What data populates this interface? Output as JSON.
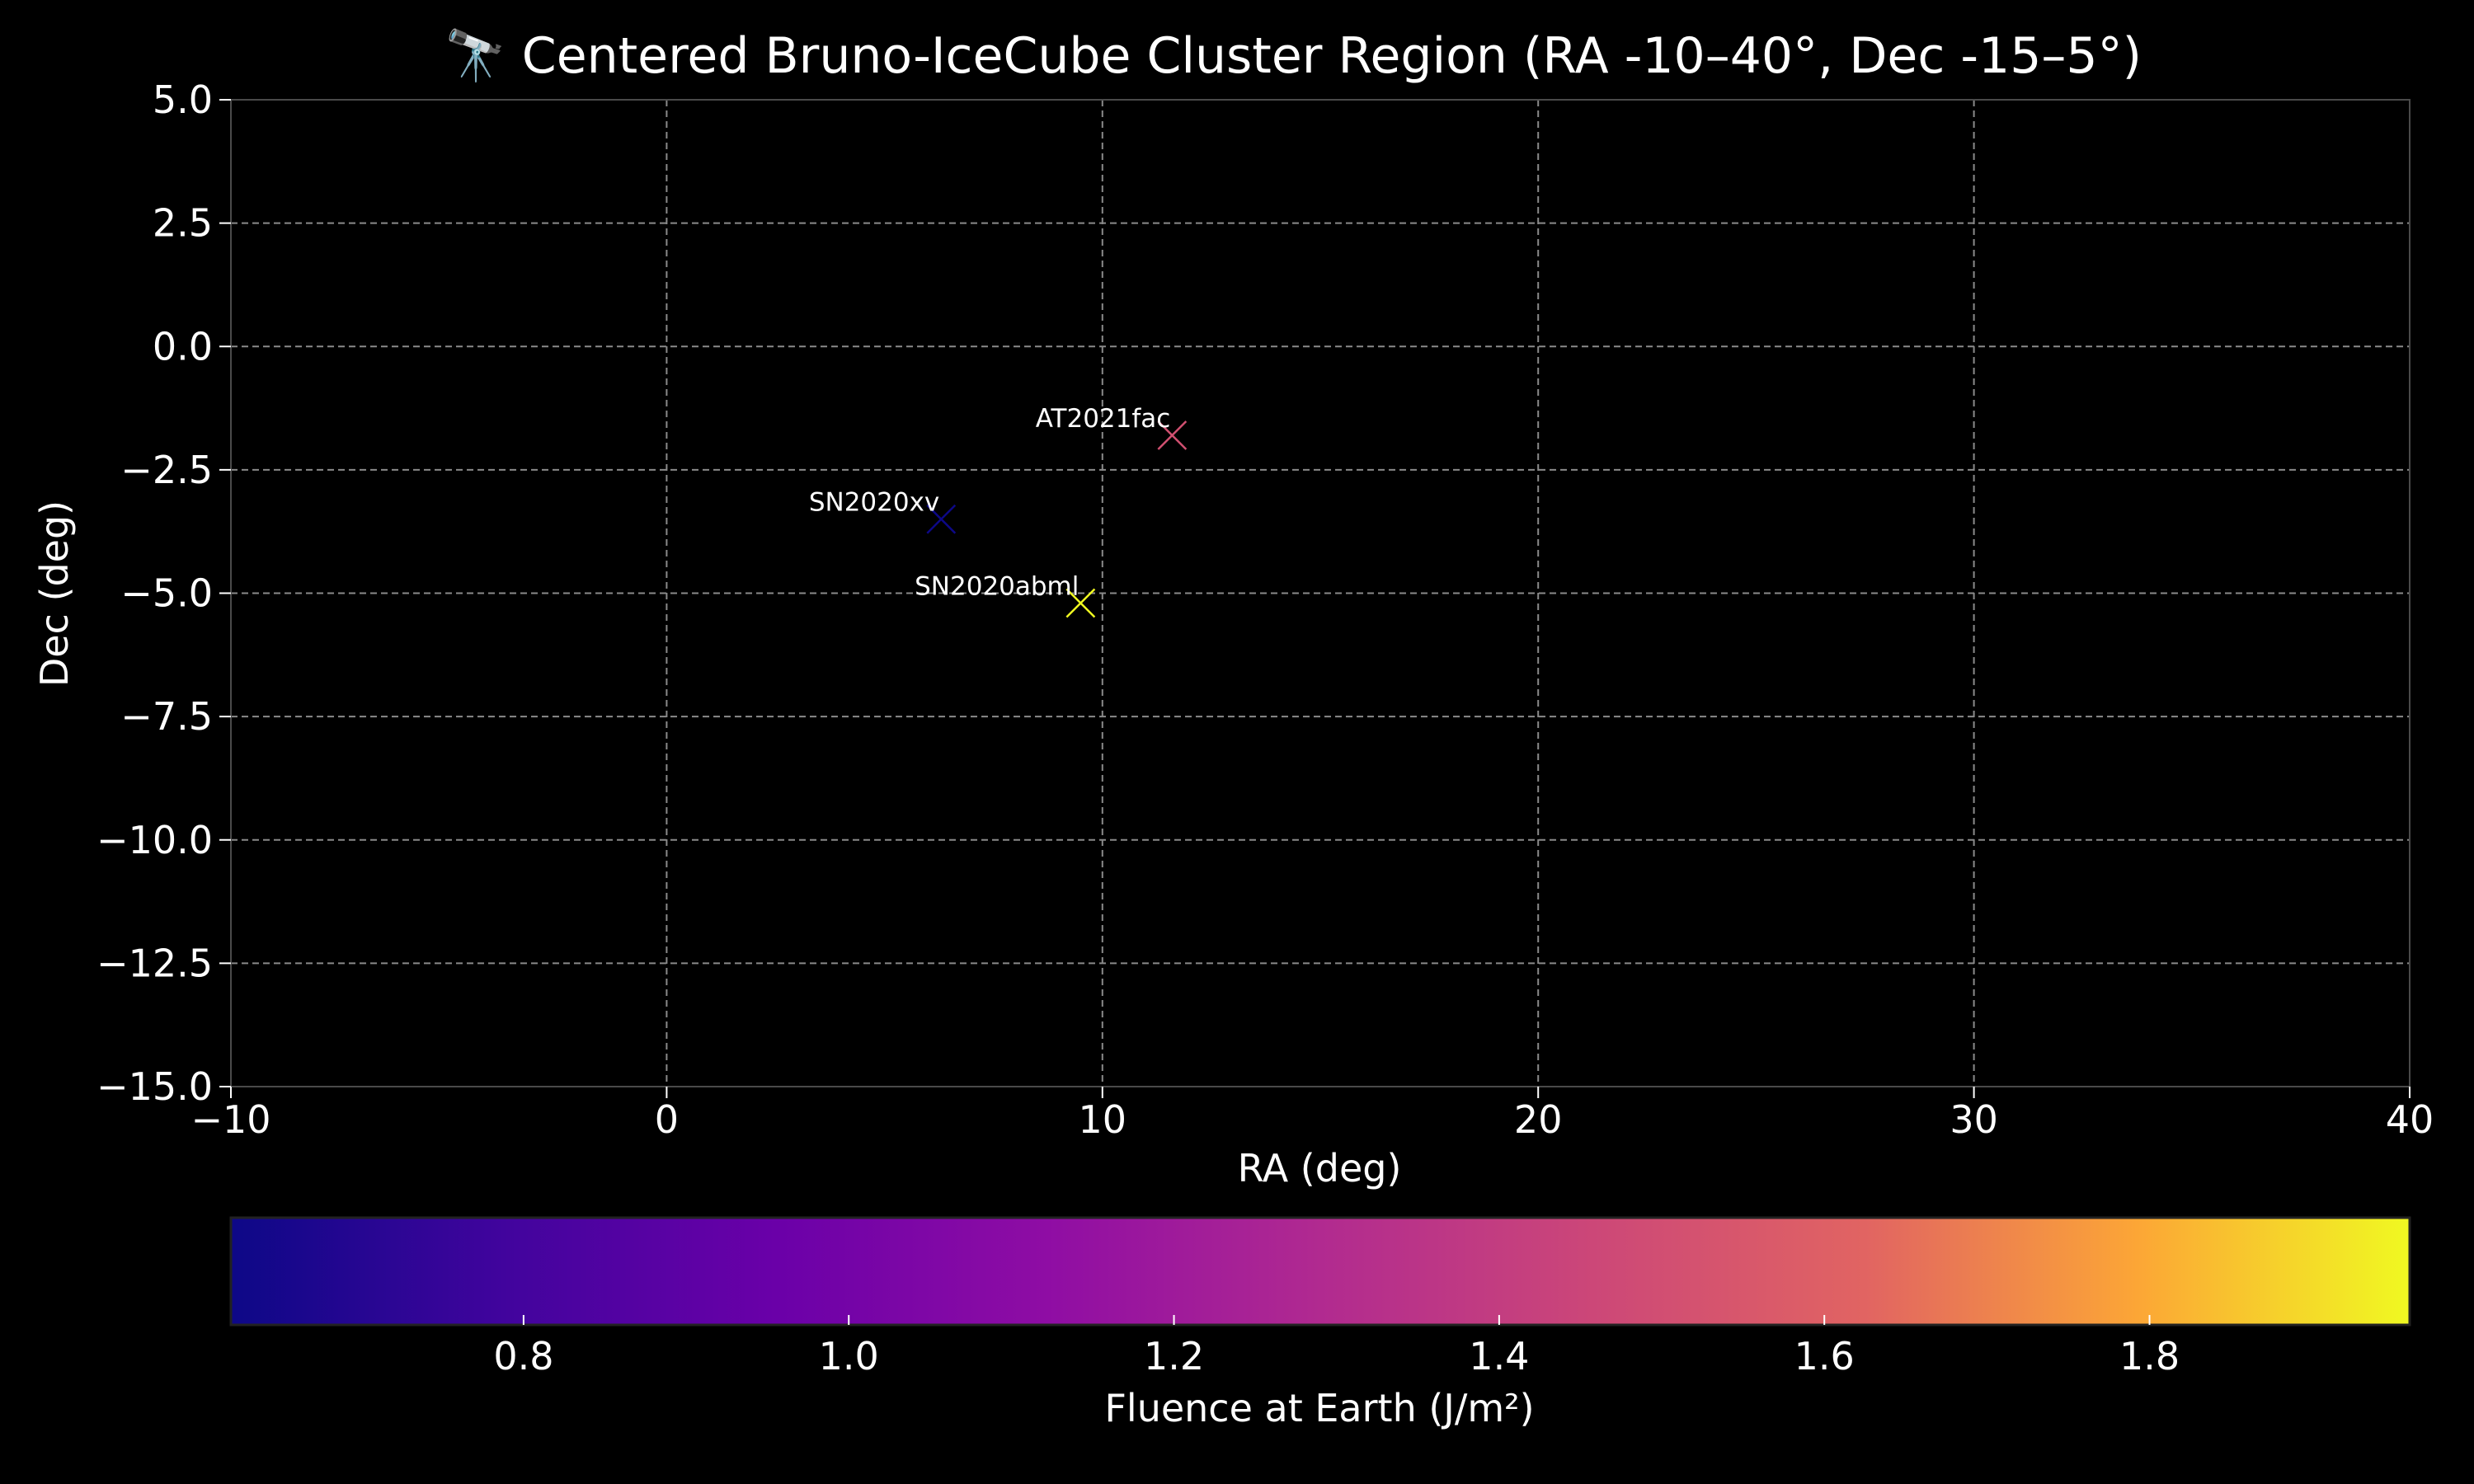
{
  "chart_data": {
    "type": "scatter",
    "title": "🔭 Centered Bruno-IceCube Cluster Region (RA -10–40°, Dec -15–5°)",
    "xlabel": "RA (deg)",
    "ylabel": "Dec (deg)",
    "xlim": [
      -10,
      40
    ],
    "ylim": [
      -15,
      5
    ],
    "xticks": [
      -10,
      0,
      10,
      20,
      30,
      40
    ],
    "xtick_labels": [
      "−10",
      "0",
      "10",
      "20",
      "30",
      "40"
    ],
    "yticks": [
      5,
      2.5,
      0,
      -2.5,
      -5,
      -7.5,
      -10,
      -12.5,
      -15
    ],
    "ytick_labels": [
      "5.0",
      "2.5",
      "0.0",
      "−2.5",
      "−5.0",
      "−7.5",
      "−10.0",
      "−12.5",
      "−15.0"
    ],
    "grid": true,
    "marker": "x",
    "points": [
      {
        "label": "AT2021fac",
        "x": 11.6,
        "y": -1.8,
        "fluence": 1.33
      },
      {
        "label": "SN2020xv",
        "x": 6.3,
        "y": -3.5,
        "fluence": 0.62
      },
      {
        "label": "SN2020abml",
        "x": 9.5,
        "y": -5.2,
        "fluence": 1.96
      }
    ],
    "colorbar": {
      "label": "Fluence at Earth (J/m²)",
      "range": [
        0.62,
        1.96
      ],
      "colormap": "plasma",
      "orientation": "horizontal",
      "ticks": [
        0.8,
        1.0,
        1.2,
        1.4,
        1.6,
        1.8
      ],
      "tick_labels": [
        "0.8",
        "1.0",
        "1.2",
        "1.4",
        "1.6",
        "1.8"
      ]
    },
    "colors": {
      "background": "#000000",
      "text": "#ffffff",
      "grid": "#8a8a8a",
      "axes": "#4a4a4a"
    }
  }
}
